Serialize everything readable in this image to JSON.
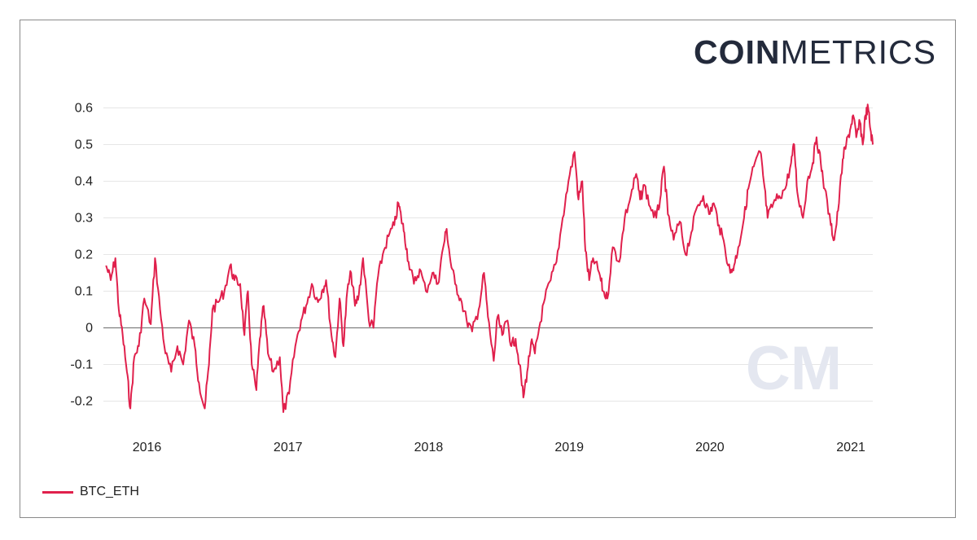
{
  "brand": {
    "logo_bold": "COIN",
    "logo_light": "METRICS",
    "watermark": "CM"
  },
  "colors": {
    "series": "#e0204c",
    "grid": "#e6e6e6",
    "zero_line": "#7f7f7f",
    "logo": "#232a3b",
    "watermark": "#e4e7f0"
  },
  "chart_data": {
    "type": "line",
    "title": "",
    "xlabel": "",
    "ylabel": "",
    "ylim": [
      -0.25,
      0.65
    ],
    "xlim": [
      "2015-10-01",
      "2021-03-20"
    ],
    "y_ticks": [
      -0.2,
      -0.1,
      0,
      0.1,
      0.2,
      0.3,
      0.4,
      0.5,
      0.6
    ],
    "y_tick_labels": [
      "-0.2",
      "-0.1",
      "0",
      "0.1",
      "0.2",
      "0.3",
      "0.4",
      "0.5",
      "0.6"
    ],
    "x_ticks": [
      "2016-01-01",
      "2017-01-01",
      "2018-01-01",
      "2019-01-01",
      "2020-01-01",
      "2021-01-01"
    ],
    "x_tick_labels": [
      "2016",
      "2017",
      "2018",
      "2019",
      "2020",
      "2021"
    ],
    "grid": true,
    "legend_position": "bottom-left",
    "series": [
      {
        "name": "BTC_ETH",
        "color": "#e0204c",
        "points": [
          [
            "2015-10-08",
            0.17
          ],
          [
            "2015-10-20",
            0.13
          ],
          [
            "2015-11-01",
            0.19
          ],
          [
            "2015-11-10",
            0.05
          ],
          [
            "2015-11-20",
            -0.02
          ],
          [
            "2015-12-01",
            -0.12
          ],
          [
            "2015-12-10",
            -0.22
          ],
          [
            "2015-12-20",
            -0.08
          ],
          [
            "2016-01-01",
            -0.05
          ],
          [
            "2016-01-15",
            0.08
          ],
          [
            "2016-02-01",
            0.01
          ],
          [
            "2016-02-12",
            0.19
          ],
          [
            "2016-02-25",
            0.05
          ],
          [
            "2016-03-10",
            -0.07
          ],
          [
            "2016-03-25",
            -0.12
          ],
          [
            "2016-04-10",
            -0.05
          ],
          [
            "2016-04-25",
            -0.1
          ],
          [
            "2016-05-10",
            0.02
          ],
          [
            "2016-05-25",
            -0.05
          ],
          [
            "2016-06-05",
            -0.15
          ],
          [
            "2016-06-20",
            -0.22
          ],
          [
            "2016-07-01",
            -0.1
          ],
          [
            "2016-07-10",
            0.05
          ],
          [
            "2016-07-25",
            0.07
          ],
          [
            "2016-08-10",
            0.1
          ],
          [
            "2016-08-25",
            0.17
          ],
          [
            "2016-09-05",
            0.13
          ],
          [
            "2016-09-20",
            0.12
          ],
          [
            "2016-10-01",
            -0.02
          ],
          [
            "2016-10-10",
            0.1
          ],
          [
            "2016-10-20",
            -0.1
          ],
          [
            "2016-11-01",
            -0.17
          ],
          [
            "2016-11-10",
            -0.03
          ],
          [
            "2016-11-20",
            0.06
          ],
          [
            "2016-12-01",
            -0.07
          ],
          [
            "2016-12-15",
            -0.12
          ],
          [
            "2017-01-01",
            -0.08
          ],
          [
            "2017-01-10",
            -0.23
          ],
          [
            "2017-01-25",
            -0.18
          ],
          [
            "2017-02-10",
            -0.05
          ],
          [
            "2017-02-25",
            0.02
          ],
          [
            "2017-03-10",
            0.06
          ],
          [
            "2017-03-25",
            0.12
          ],
          [
            "2017-04-10",
            0.07
          ],
          [
            "2017-04-20",
            0.1
          ],
          [
            "2017-05-01",
            0.13
          ],
          [
            "2017-05-15",
            -0.02
          ],
          [
            "2017-05-25",
            -0.08
          ],
          [
            "2017-06-05",
            0.08
          ],
          [
            "2017-06-15",
            -0.05
          ],
          [
            "2017-06-25",
            0.1
          ],
          [
            "2017-07-05",
            0.15
          ],
          [
            "2017-07-15",
            0.06
          ],
          [
            "2017-07-25",
            0.09
          ],
          [
            "2017-08-05",
            0.19
          ],
          [
            "2017-08-20",
            0.02
          ],
          [
            "2017-09-01",
            0.0
          ],
          [
            "2017-09-10",
            0.12
          ],
          [
            "2017-09-25",
            0.2
          ],
          [
            "2017-10-10",
            0.25
          ],
          [
            "2017-10-25",
            0.28
          ],
          [
            "2017-11-05",
            0.34
          ],
          [
            "2017-11-12",
            0.3
          ],
          [
            "2017-11-20",
            0.26
          ],
          [
            "2017-12-01",
            0.18
          ],
          [
            "2017-12-15",
            0.12
          ],
          [
            "2017-12-30",
            0.16
          ],
          [
            "2018-01-15",
            0.1
          ],
          [
            "2018-02-01",
            0.15
          ],
          [
            "2018-02-15",
            0.12
          ],
          [
            "2018-03-01",
            0.22
          ],
          [
            "2018-03-10",
            0.27
          ],
          [
            "2018-03-20",
            0.18
          ],
          [
            "2018-04-01",
            0.12
          ],
          [
            "2018-04-15",
            0.08
          ],
          [
            "2018-05-01",
            0.02
          ],
          [
            "2018-05-15",
            -0.01
          ],
          [
            "2018-06-01",
            0.05
          ],
          [
            "2018-06-15",
            0.15
          ],
          [
            "2018-06-25",
            0.03
          ],
          [
            "2018-07-10",
            -0.09
          ],
          [
            "2018-07-20",
            0.03
          ],
          [
            "2018-08-01",
            -0.02
          ],
          [
            "2018-08-15",
            0.02
          ],
          [
            "2018-08-25",
            -0.05
          ],
          [
            "2018-09-05",
            -0.03
          ],
          [
            "2018-09-15",
            -0.1
          ],
          [
            "2018-09-25",
            -0.19
          ],
          [
            "2018-10-05",
            -0.12
          ],
          [
            "2018-10-15",
            -0.04
          ],
          [
            "2018-10-25",
            -0.07
          ],
          [
            "2018-11-05",
            0.0
          ],
          [
            "2018-11-20",
            0.08
          ],
          [
            "2018-12-05",
            0.13
          ],
          [
            "2018-12-20",
            0.18
          ],
          [
            "2019-01-05",
            0.3
          ],
          [
            "2019-01-20",
            0.4
          ],
          [
            "2019-02-05",
            0.48
          ],
          [
            "2019-02-15",
            0.35
          ],
          [
            "2019-02-25",
            0.4
          ],
          [
            "2019-03-05",
            0.21
          ],
          [
            "2019-03-15",
            0.13
          ],
          [
            "2019-03-25",
            0.19
          ],
          [
            "2019-04-10",
            0.15
          ],
          [
            "2019-04-20",
            0.1
          ],
          [
            "2019-05-01",
            0.08
          ],
          [
            "2019-05-15",
            0.22
          ],
          [
            "2019-06-01",
            0.18
          ],
          [
            "2019-06-15",
            0.3
          ],
          [
            "2019-07-01",
            0.36
          ],
          [
            "2019-07-15",
            0.42
          ],
          [
            "2019-07-25",
            0.35
          ],
          [
            "2019-08-05",
            0.39
          ],
          [
            "2019-08-20",
            0.33
          ],
          [
            "2019-09-05",
            0.3
          ],
          [
            "2019-09-15",
            0.35
          ],
          [
            "2019-09-25",
            0.44
          ],
          [
            "2019-10-05",
            0.31
          ],
          [
            "2019-10-20",
            0.24
          ],
          [
            "2019-11-05",
            0.29
          ],
          [
            "2019-11-20",
            0.2
          ],
          [
            "2019-12-05",
            0.26
          ],
          [
            "2019-12-20",
            0.33
          ],
          [
            "2020-01-05",
            0.36
          ],
          [
            "2020-01-20",
            0.31
          ],
          [
            "2020-02-01",
            0.34
          ],
          [
            "2020-02-15",
            0.28
          ],
          [
            "2020-03-01",
            0.22
          ],
          [
            "2020-03-15",
            0.15
          ],
          [
            "2020-03-25",
            0.17
          ],
          [
            "2020-04-05",
            0.22
          ],
          [
            "2020-04-20",
            0.3
          ],
          [
            "2020-05-01",
            0.38
          ],
          [
            "2020-05-15",
            0.44
          ],
          [
            "2020-06-01",
            0.48
          ],
          [
            "2020-06-10",
            0.4
          ],
          [
            "2020-06-20",
            0.3
          ],
          [
            "2020-07-05",
            0.34
          ],
          [
            "2020-07-20",
            0.36
          ],
          [
            "2020-08-05",
            0.38
          ],
          [
            "2020-08-20",
            0.45
          ],
          [
            "2020-08-28",
            0.5
          ],
          [
            "2020-09-05",
            0.37
          ],
          [
            "2020-09-20",
            0.3
          ],
          [
            "2020-10-01",
            0.4
          ],
          [
            "2020-10-15",
            0.45
          ],
          [
            "2020-10-25",
            0.52
          ],
          [
            "2020-11-05",
            0.45
          ],
          [
            "2020-11-15",
            0.38
          ],
          [
            "2020-12-01",
            0.28
          ],
          [
            "2020-12-10",
            0.24
          ],
          [
            "2020-12-20",
            0.32
          ],
          [
            "2021-01-01",
            0.46
          ],
          [
            "2021-01-10",
            0.5
          ],
          [
            "2021-01-20",
            0.54
          ],
          [
            "2021-01-28",
            0.58
          ],
          [
            "2021-02-05",
            0.52
          ],
          [
            "2021-02-15",
            0.56
          ],
          [
            "2021-02-22",
            0.5
          ],
          [
            "2021-03-01",
            0.58
          ],
          [
            "2021-03-08",
            0.6
          ],
          [
            "2021-03-14",
            0.54
          ],
          [
            "2021-03-20",
            0.5
          ]
        ]
      }
    ]
  }
}
